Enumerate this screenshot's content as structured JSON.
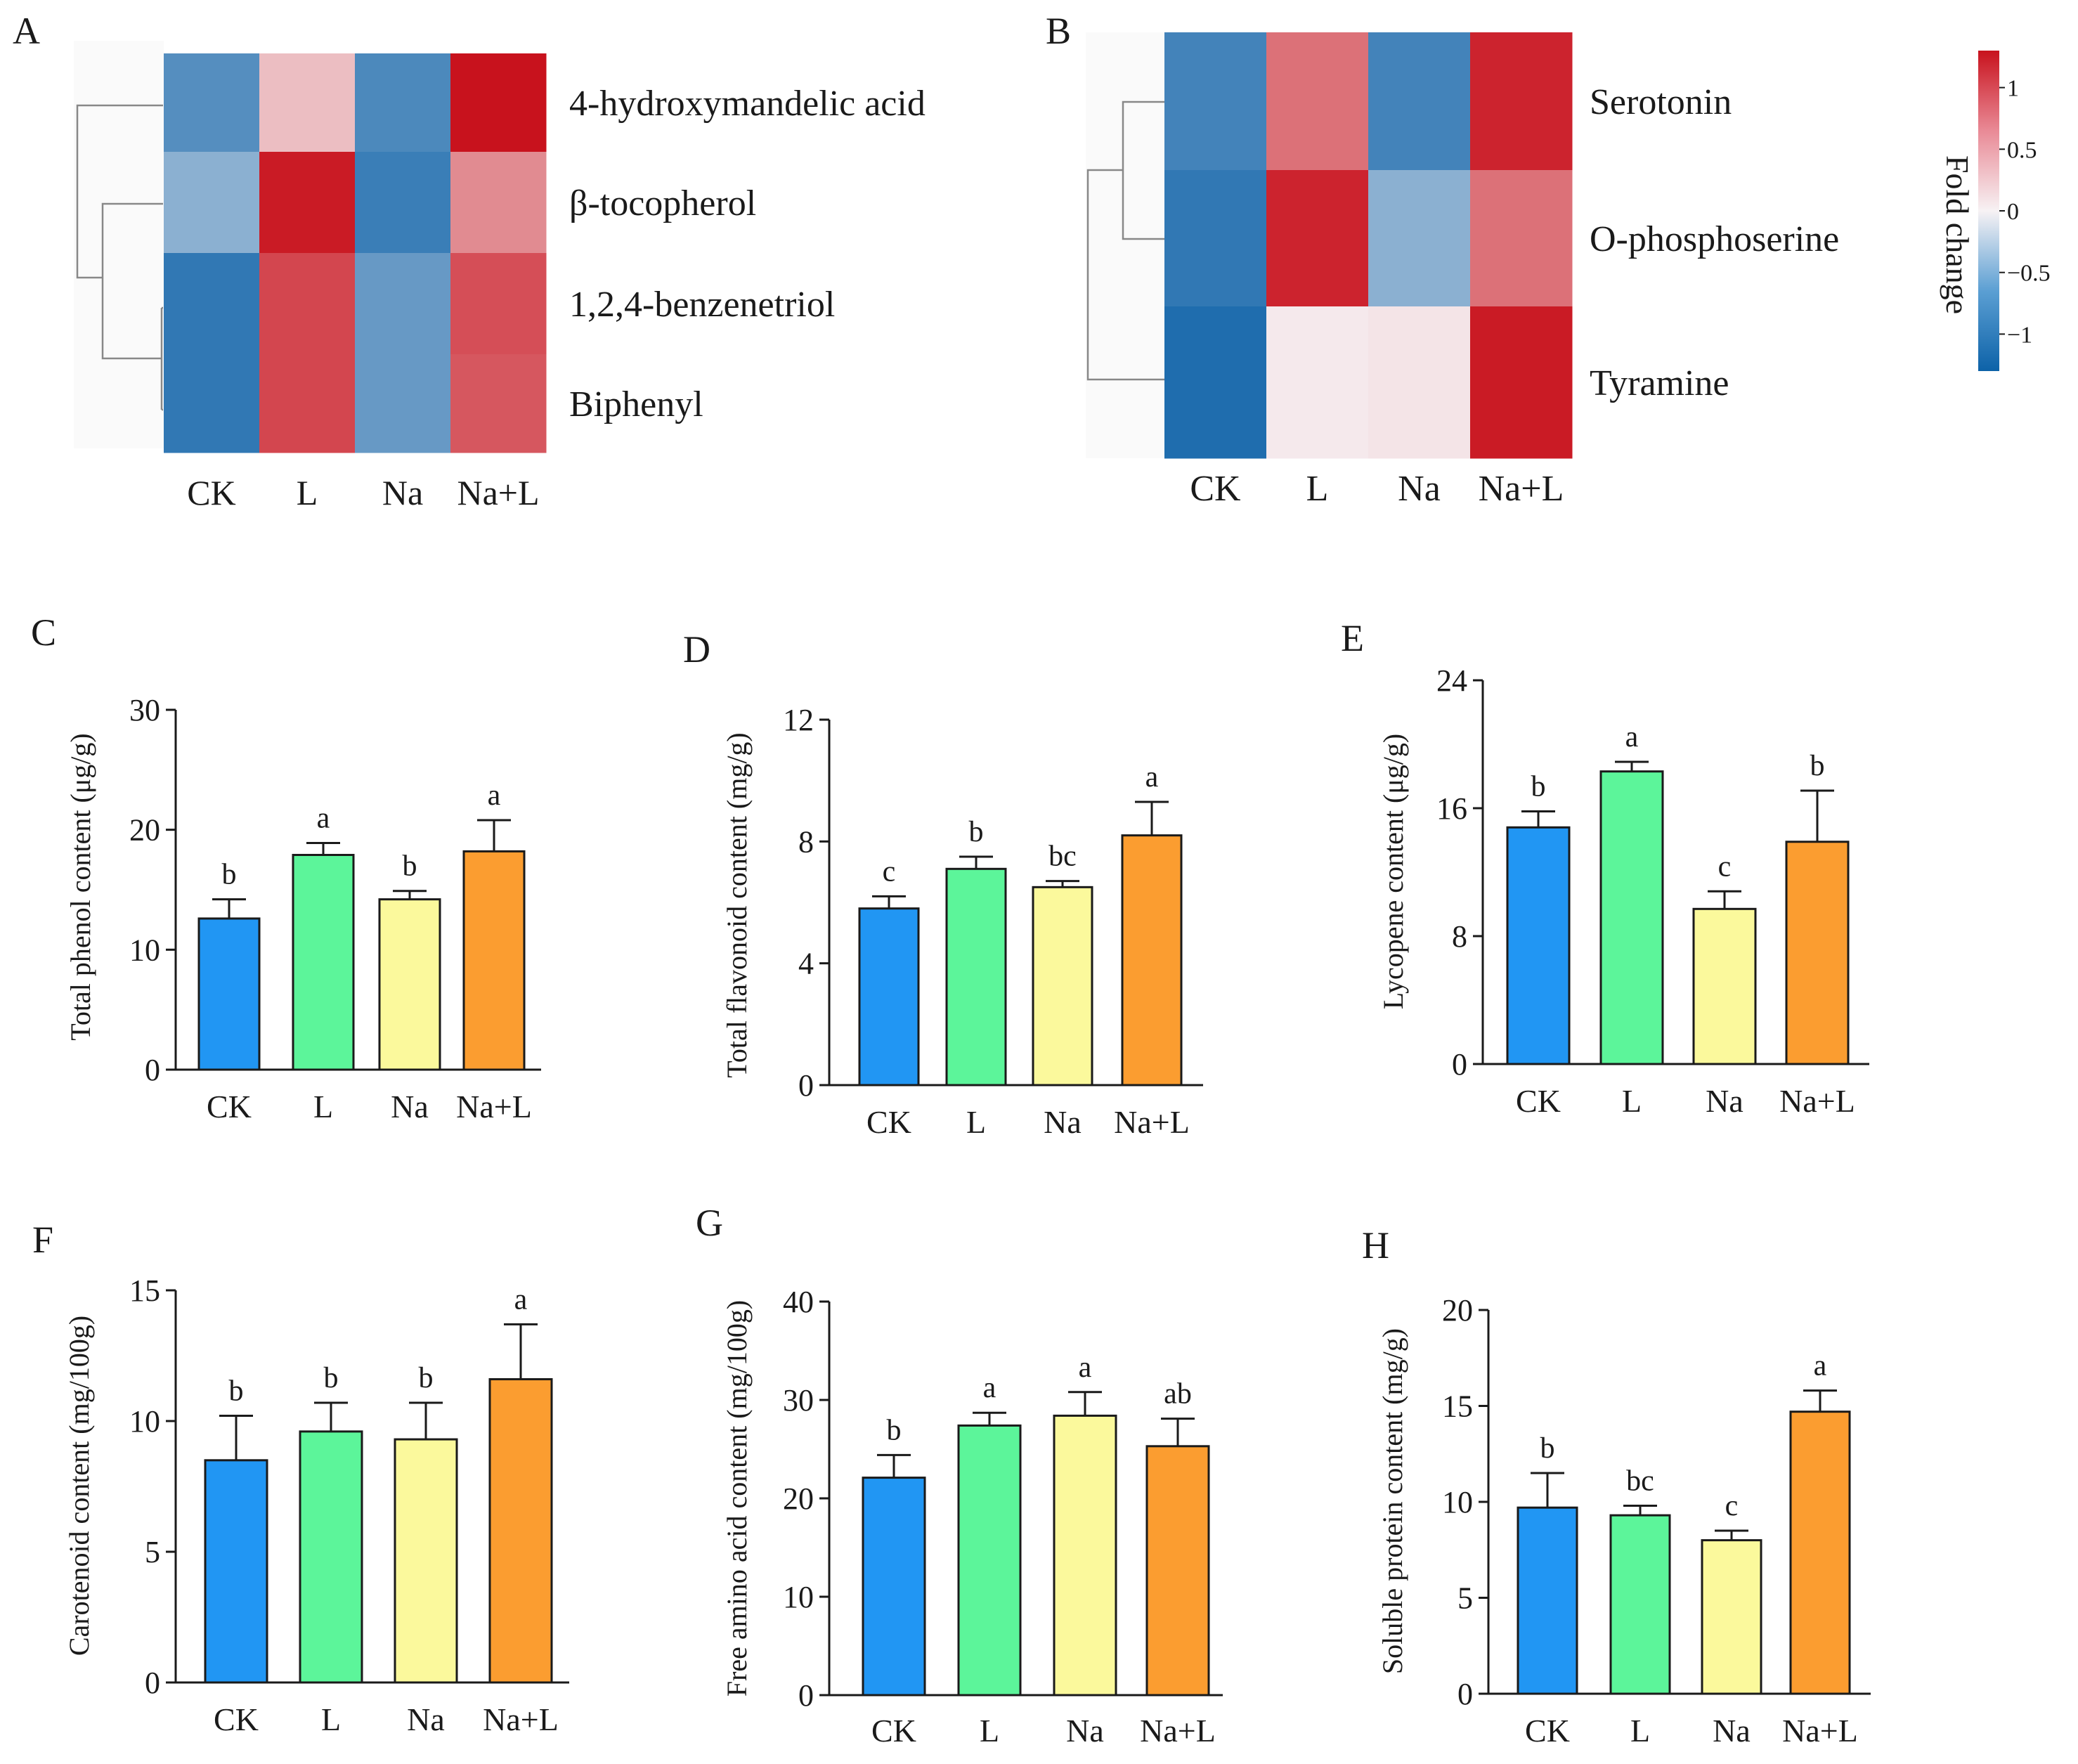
{
  "panels": {
    "A": "A",
    "B": "B",
    "C": "C",
    "D": "D",
    "E": "E",
    "F": "F",
    "G": "G",
    "H": "H"
  },
  "colors": {
    "CK": "#2196f3",
    "L": "#5cf59a",
    "Na": "#fbf99c",
    "Na+L": "#fb9d30",
    "heat_low": "#0d62a8",
    "heat_mid": "#f7f2f4",
    "heat_high": "#c8121d"
  },
  "chart_data": [
    {
      "id": "A",
      "type": "heatmap",
      "columns": [
        "CK",
        "L",
        "Na",
        "Na+L"
      ],
      "rows": [
        "4-hydroxymandelic acid",
        "β-tocopherol",
        "1,2,4-benzenetriol",
        "Biphenyl"
      ],
      "values": [
        [
          -0.9,
          0.3,
          -0.95,
          1.3
        ],
        [
          -0.6,
          1.25,
          -1.05,
          0.6
        ],
        [
          -1.1,
          1.0,
          -0.8,
          0.95
        ],
        [
          -1.1,
          1.0,
          -0.8,
          0.9
        ]
      ],
      "dendrogram": "rows"
    },
    {
      "id": "B",
      "type": "heatmap",
      "columns": [
        "CK",
        "L",
        "Na",
        "Na+L"
      ],
      "rows": [
        "Serotonin",
        "O-phosphoserine",
        "Tyramine"
      ],
      "values": [
        [
          -1.0,
          0.75,
          -1.0,
          1.2
        ],
        [
          -1.1,
          1.2,
          -0.6,
          0.75
        ],
        [
          -1.2,
          0.05,
          0.08,
          1.25
        ]
      ],
      "dendrogram": "rows",
      "colorbar": {
        "label": "Fold change",
        "ticks": [
          "1",
          "0.5",
          "0",
          "−0.5",
          "−1"
        ],
        "range": [
          -1.3,
          1.3
        ]
      }
    },
    {
      "id": "C",
      "type": "bar",
      "categories": [
        "CK",
        "L",
        "Na",
        "Na+L"
      ],
      "values": [
        12.6,
        17.9,
        14.2,
        18.2
      ],
      "errors": [
        1.6,
        1.0,
        0.7,
        2.6
      ],
      "letters": [
        "b",
        "a",
        "b",
        "a"
      ],
      "ylabel": "Total phenol content (μg/g)",
      "ylim": [
        0,
        30
      ],
      "yticks": [
        0,
        10,
        20,
        30
      ]
    },
    {
      "id": "D",
      "type": "bar",
      "categories": [
        "CK",
        "L",
        "Na",
        "Na+L"
      ],
      "values": [
        5.8,
        7.1,
        6.5,
        8.2
      ],
      "errors": [
        0.4,
        0.4,
        0.2,
        1.1
      ],
      "letters": [
        "c",
        "b",
        "bc",
        "a"
      ],
      "ylabel": "Total flavonoid content (mg/g)",
      "ylim": [
        0,
        12
      ],
      "yticks": [
        0,
        4,
        8,
        12
      ]
    },
    {
      "id": "E",
      "type": "bar",
      "categories": [
        "CK",
        "L",
        "Na",
        "Na+L"
      ],
      "values": [
        14.8,
        18.3,
        9.7,
        13.9
      ],
      "errors": [
        1.0,
        0.6,
        1.1,
        3.2
      ],
      "letters": [
        "b",
        "a",
        "c",
        "b"
      ],
      "ylabel": "Lycopene content (μg/g)",
      "ylim": [
        0,
        24
      ],
      "yticks": [
        0,
        8,
        16,
        24
      ]
    },
    {
      "id": "F",
      "type": "bar",
      "categories": [
        "CK",
        "L",
        "Na",
        "Na+L"
      ],
      "values": [
        8.5,
        9.6,
        9.3,
        11.6
      ],
      "errors": [
        1.7,
        1.1,
        1.4,
        2.1
      ],
      "letters": [
        "b",
        "b",
        "b",
        "a"
      ],
      "ylabel": "Carotenoid content (mg/100g)",
      "ylim": [
        0,
        15
      ],
      "yticks": [
        0,
        5,
        10,
        15
      ]
    },
    {
      "id": "G",
      "type": "bar",
      "categories": [
        "CK",
        "L",
        "Na",
        "Na+L"
      ],
      "values": [
        22.1,
        27.4,
        28.4,
        25.3
      ],
      "errors": [
        2.3,
        1.3,
        2.4,
        2.8
      ],
      "letters": [
        "b",
        "a",
        "a",
        "ab"
      ],
      "ylabel": "Free amino acid content (mg/100g)",
      "ylim": [
        0,
        40
      ],
      "yticks": [
        0,
        10,
        20,
        30,
        40
      ]
    },
    {
      "id": "H",
      "type": "bar",
      "categories": [
        "CK",
        "L",
        "Na",
        "Na+L"
      ],
      "values": [
        9.7,
        9.3,
        8.0,
        14.7
      ],
      "errors": [
        1.8,
        0.5,
        0.5,
        1.1
      ],
      "letters": [
        "b",
        "bc",
        "c",
        "a"
      ],
      "ylabel": "Soluble protein content (mg/g)",
      "ylim": [
        0,
        20
      ],
      "yticks": [
        0,
        5,
        10,
        15,
        20
      ]
    }
  ]
}
